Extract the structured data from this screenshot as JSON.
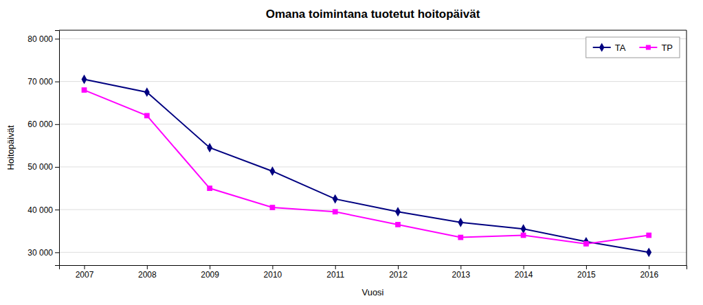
{
  "chart_data": {
    "type": "line",
    "title": "Omana toimintana tuotetut hoitopäivät",
    "xlabel": "Vuosi",
    "ylabel": "Hoitopäivät",
    "x": [
      2007,
      2008,
      2009,
      2010,
      2011,
      2012,
      2013,
      2014,
      2015,
      2016
    ],
    "series": [
      {
        "name": "TA",
        "color": "#000080",
        "marker": "diamond",
        "line_style": "solid",
        "values": [
          70500,
          67500,
          54500,
          49000,
          42500,
          39500,
          37000,
          35500,
          32500,
          30000
        ]
      },
      {
        "name": "TP",
        "color": "#FF00FF",
        "marker": "square",
        "line_style": "solid",
        "values": [
          68000,
          62000,
          45000,
          40500,
          39500,
          36500,
          33500,
          34000,
          32000,
          34000
        ]
      }
    ],
    "xlim": [
      2006.6,
      2016.6
    ],
    "xticks": [
      2007,
      2008,
      2009,
      2010,
      2011,
      2012,
      2013,
      2014,
      2015,
      2016
    ],
    "ylim": [
      27000,
      82000
    ],
    "yticks": [
      {
        "value": 30000,
        "label": "30 000"
      },
      {
        "value": 40000,
        "label": "40 000"
      },
      {
        "value": 50000,
        "label": "50 000"
      },
      {
        "value": 60000,
        "label": "60 000"
      },
      {
        "value": 70000,
        "label": "70 000"
      },
      {
        "value": 80000,
        "label": "80 000"
      }
    ],
    "grid": "y",
    "legend": "upper right"
  }
}
